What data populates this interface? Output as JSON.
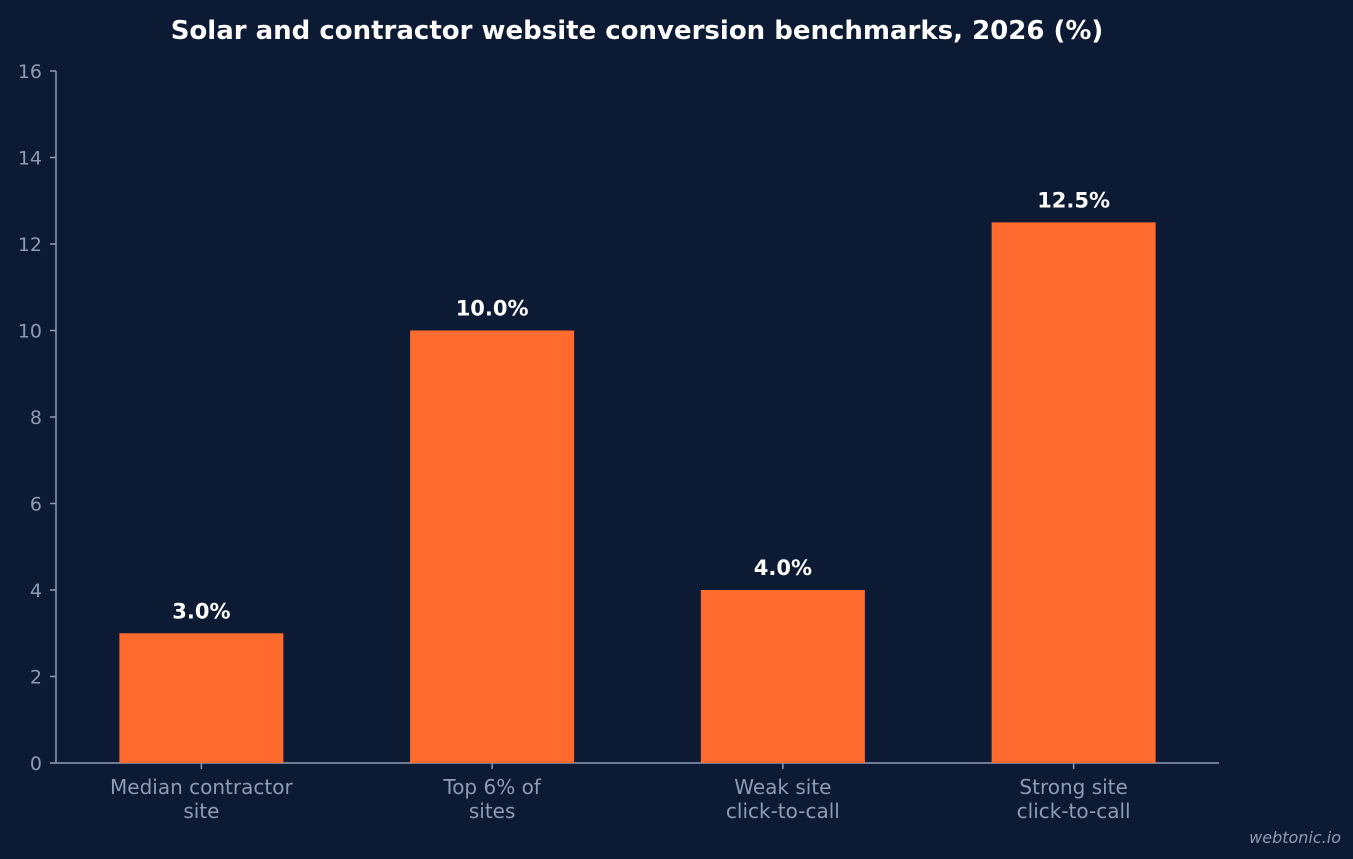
{
  "chart_data": {
    "type": "bar",
    "title": "Solar and contractor website conversion benchmarks, 2026 (%)",
    "categories": [
      [
        "Median contractor",
        "site"
      ],
      [
        "Top 6% of",
        "sites"
      ],
      [
        "Weak site",
        "click-to-call"
      ],
      [
        "Strong site",
        "click-to-call"
      ]
    ],
    "values": [
      3.0,
      10.0,
      4.0,
      12.5
    ],
    "value_labels": [
      "3.0%",
      "10.0%",
      "4.0%",
      "12.5%"
    ],
    "xlabel": "",
    "ylabel": "",
    "ylim": [
      0,
      16
    ],
    "yticks": [
      0,
      2,
      4,
      6,
      8,
      10,
      12,
      14,
      16
    ],
    "grid": false,
    "legend": "none",
    "colors": {
      "background": "#0c1b33",
      "bar": "#ff6b2e",
      "axis": "#8d9bb4",
      "text": "#ffffff"
    }
  },
  "footer": {
    "watermark": "webtonic.io"
  }
}
